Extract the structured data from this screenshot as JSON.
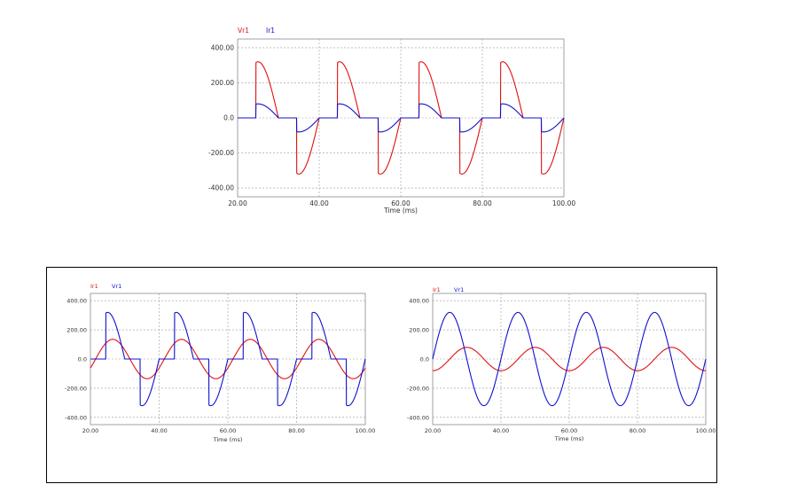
{
  "chart_data": [
    {
      "type": "line",
      "legend": [
        "Vr1",
        "Ir1"
      ],
      "xlabel": "Time (ms)",
      "ylabel": "",
      "xlim": [
        20,
        100
      ],
      "ylim": [
        -450,
        450
      ],
      "x_ticks": [
        "20.00",
        "40.00",
        "60.00",
        "80.00",
        "100.00"
      ],
      "y_ticks": [
        "400.00",
        "200.00",
        "0.0",
        "-200.00",
        "-400.00"
      ],
      "grid": true,
      "series": [
        {
          "name": "Vr1",
          "color": "#e01010",
          "kind": "chopped",
          "amplitude": 320,
          "alpha_ms": 4.5
        },
        {
          "name": "Ir1",
          "color": "#1010d0",
          "kind": "chopped",
          "amplitude": 80,
          "alpha_ms": 4.5
        }
      ]
    },
    {
      "type": "line",
      "legend": [
        "Ir1",
        "Vr1"
      ],
      "xlabel": "Time (ms)",
      "ylabel": "",
      "xlim": [
        20,
        100
      ],
      "ylim": [
        -450,
        450
      ],
      "x_ticks": [
        "20.00",
        "40.00",
        "60.00",
        "80.00",
        "100.00"
      ],
      "y_ticks": [
        "400.00",
        "200.00",
        "0.0",
        "-200.00",
        "-400.00"
      ],
      "grid": true,
      "series": [
        {
          "name": "Ir1",
          "color": "#e01010",
          "kind": "sine",
          "amplitude": 135,
          "phase_ms": 1.5
        },
        {
          "name": "Vr1",
          "color": "#1010d0",
          "kind": "chopped",
          "amplitude": 320,
          "alpha_ms": 4.5
        }
      ]
    },
    {
      "type": "line",
      "legend": [
        "Ir1",
        "Vr1"
      ],
      "xlabel": "Time (ms)",
      "ylabel": "",
      "xlim": [
        20,
        100
      ],
      "ylim": [
        -450,
        450
      ],
      "x_ticks": [
        "20.00",
        "40.00",
        "60.00",
        "80.00",
        "100.00"
      ],
      "y_ticks": [
        "400.00",
        "200.00",
        "0.0",
        "-200.00",
        "-400.00"
      ],
      "grid": true,
      "series": [
        {
          "name": "Ir1",
          "color": "#e01010",
          "kind": "sine",
          "amplitude": 80,
          "phase_ms": 5
        },
        {
          "name": "Vr1",
          "color": "#1010d0",
          "kind": "sine",
          "amplitude": 320,
          "phase_ms": 0
        }
      ]
    }
  ]
}
